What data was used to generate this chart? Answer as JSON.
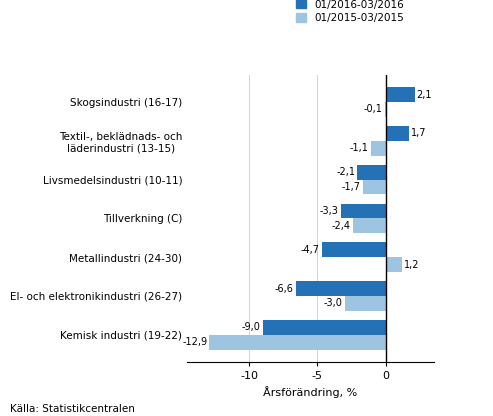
{
  "categories": [
    "Kemisk industri (19-22)",
    "El- och elektronikindustri (26-27)",
    "Metallindustri (24-30)",
    "Tillverkning (C)",
    "Livsmedelsindustri (10-11)",
    "Textil-, beklädnads- och\nläderindustri (13-15)",
    "Skogsindustri (16-17)"
  ],
  "series1_values": [
    -9.0,
    -6.6,
    -4.7,
    -3.3,
    -2.1,
    1.7,
    2.1
  ],
  "series2_values": [
    -12.9,
    -3.0,
    1.2,
    -2.4,
    -1.7,
    -1.1,
    -0.1
  ],
  "series1_color": "#2472b5",
  "series2_color": "#9dc4e0",
  "series1_label": "01/2016-03/2016",
  "series2_label": "01/2015-03/2015",
  "xlabel": "Årsförändring, %",
  "xlim": [
    -14.5,
    3.5
  ],
  "xticks": [
    -10,
    -5,
    0
  ],
  "source": "Källa: Statistikcentralen",
  "bar_height": 0.38
}
